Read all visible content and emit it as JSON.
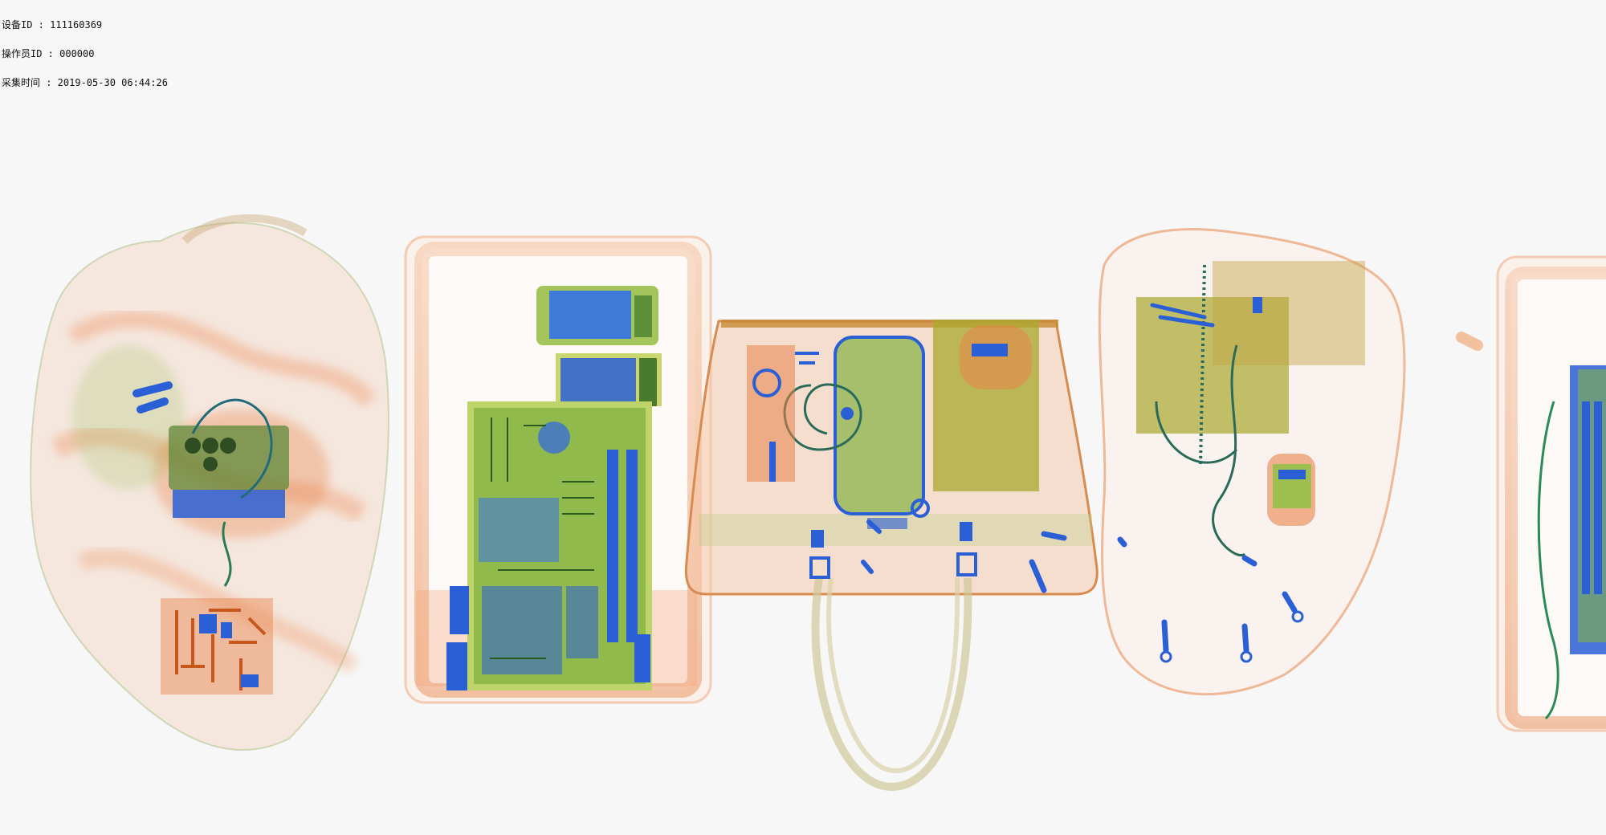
{
  "header": {
    "device_id_line": "设备ID : 111160369",
    "operator_id_line": "操作员ID : 000000",
    "capture_time_line": "采集时间 : 2019-05-30 06:44:26"
  },
  "scan": {
    "items": [
      "backpack",
      "luggage-tray-with-laptop",
      "handbag",
      "backpack",
      "luggage-tray-partial"
    ]
  },
  "colors": {
    "background": "#f7f7f7",
    "organic": "#e8834a",
    "mixed": "#8fb83a",
    "metal": "#2a5fd6"
  }
}
